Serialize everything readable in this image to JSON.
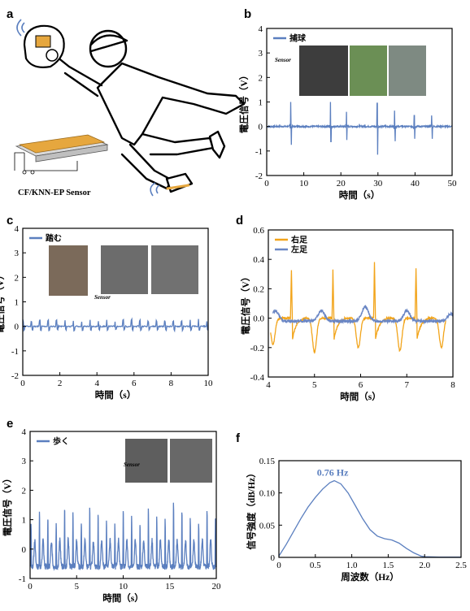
{
  "figure": {
    "panels": [
      "a",
      "b",
      "c",
      "d",
      "e",
      "f"
    ],
    "sensor_label": "CF/KNN-EP Sensor",
    "photo_label": "Sensor",
    "colors": {
      "blue": "#5b7fbf",
      "orange": "#f2a41a",
      "skin": "#f1d7a8",
      "board": "#e6a73e"
    }
  },
  "chart_data": [
    {
      "id": "b",
      "type": "line",
      "xlabel": "時間（s）",
      "ylabel": "電圧信号（V）",
      "xlim": [
        0,
        50
      ],
      "ylim": [
        -2,
        4
      ],
      "xticks": [
        0,
        10,
        20,
        30,
        40,
        50
      ],
      "yticks": [
        -2,
        -1,
        0,
        1,
        2,
        3,
        4
      ],
      "legend_position": "top-left",
      "series": [
        {
          "name": "捕球",
          "color": "#5b7fbf",
          "spikes": [
            [
              6.5,
              1.0,
              -0.75
            ],
            [
              17.2,
              1.0,
              -0.62
            ],
            [
              21.5,
              0.6,
              -0.55
            ],
            [
              29.8,
              0.95,
              -1.15
            ],
            [
              34.5,
              0.65,
              -0.6
            ],
            [
              39.8,
              0.45,
              -0.5
            ],
            [
              44.5,
              0.45,
              -0.5
            ]
          ]
        }
      ]
    },
    {
      "id": "c",
      "type": "line",
      "xlabel": "時間（s）",
      "ylabel": "電圧信号（V）",
      "xlim": [
        0,
        10
      ],
      "ylim": [
        -2,
        4
      ],
      "xticks": [
        0,
        2,
        4,
        6,
        8,
        10
      ],
      "yticks": [
        -2,
        -1,
        0,
        1,
        2,
        3,
        4
      ],
      "legend_position": "top-left",
      "series": [
        {
          "name": "踏む",
          "color": "#5b7fbf",
          "peak_amplitude": 0.3
        }
      ]
    },
    {
      "id": "d",
      "type": "line",
      "xlabel": "時間（s）",
      "ylabel": "電圧信号（V）",
      "xlim": [
        4,
        8
      ],
      "ylim": [
        -0.4,
        0.6
      ],
      "xticks": [
        4,
        5,
        6,
        7,
        8
      ],
      "yticks": [
        -0.4,
        -0.2,
        0.0,
        0.2,
        0.4,
        0.6
      ],
      "legend_position": "top-left",
      "series": [
        {
          "name": "右足",
          "color": "#f2a41a",
          "peaks": [
            [
              4.5,
              0.33
            ],
            [
              5.4,
              0.33
            ],
            [
              6.3,
              0.38
            ],
            [
              7.2,
              0.34
            ]
          ],
          "troughs": [
            [
              4.1,
              -0.18
            ],
            [
              5.0,
              -0.23
            ],
            [
              5.95,
              -0.2
            ],
            [
              6.85,
              -0.22
            ],
            [
              7.75,
              -0.2
            ]
          ]
        },
        {
          "name": "左足",
          "color": "#6a86c4",
          "humps": [
            [
              4.15,
              0.07
            ],
            [
              5.15,
              0.07
            ],
            [
              6.1,
              0.1
            ],
            [
              7.0,
              0.07
            ],
            [
              7.95,
              0.05
            ]
          ]
        }
      ]
    },
    {
      "id": "e",
      "type": "line",
      "xlabel": "時間（s）",
      "ylabel": "電圧信号（V）",
      "xlim": [
        0,
        20
      ],
      "ylim": [
        -1,
        4
      ],
      "xticks": [
        0,
        5,
        10,
        15,
        20
      ],
      "yticks": [
        -1,
        0,
        1,
        2,
        3,
        4
      ],
      "legend_position": "top-left",
      "series": [
        {
          "name": "歩く",
          "color": "#5b7fbf",
          "step_period": 0.9,
          "peak_range": [
            1.0,
            2.0
          ]
        }
      ]
    },
    {
      "id": "f",
      "type": "line",
      "xlabel": "周波数（Hz）",
      "ylabel": "信号強度（dB/Hz）",
      "xlim": [
        0,
        2.5
      ],
      "ylim": [
        0,
        0.15
      ],
      "xticks": [
        0,
        0.5,
        1.0,
        1.5,
        2.0,
        2.5
      ],
      "yticks": [
        0,
        0.05,
        0.1,
        0.15
      ],
      "annotation": "0.76 Hz",
      "series": [
        {
          "color": "#5b7fbf",
          "points": [
            [
              0,
              0.002
            ],
            [
              0.1,
              0.02
            ],
            [
              0.2,
              0.04
            ],
            [
              0.3,
              0.06
            ],
            [
              0.4,
              0.078
            ],
            [
              0.5,
              0.093
            ],
            [
              0.6,
              0.106
            ],
            [
              0.7,
              0.116
            ],
            [
              0.76,
              0.119
            ],
            [
              0.85,
              0.114
            ],
            [
              0.95,
              0.1
            ],
            [
              1.05,
              0.08
            ],
            [
              1.15,
              0.06
            ],
            [
              1.25,
              0.043
            ],
            [
              1.35,
              0.033
            ],
            [
              1.45,
              0.029
            ],
            [
              1.55,
              0.027
            ],
            [
              1.65,
              0.022
            ],
            [
              1.75,
              0.014
            ],
            [
              1.85,
              0.007
            ],
            [
              1.95,
              0.002
            ],
            [
              2.0,
              0.001
            ],
            [
              2.2,
              0.0005
            ],
            [
              2.5,
              0.0005
            ]
          ]
        }
      ]
    }
  ]
}
